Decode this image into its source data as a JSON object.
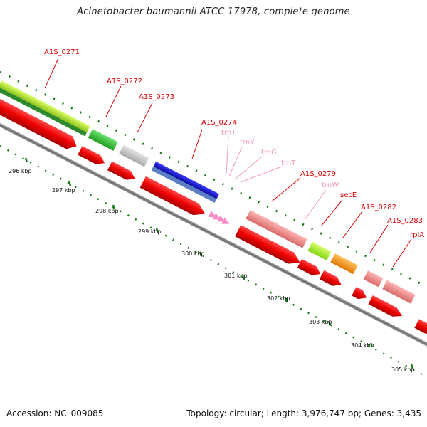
{
  "title": "Acinetobacter baumannii ATCC 17978, complete genome",
  "footer": {
    "accession": "Accession: NC_009085",
    "stats": "Topology: circular; Length: 3,976,747 bp; Genes: 3,435"
  },
  "colors": {
    "backbone": "#6e6e6e",
    "tick": "#1a7a1a",
    "label_red": "#dd0000",
    "label_pink": "#f09ac0",
    "cds": "#ee0000",
    "trna": "#f58cc8"
  },
  "kbp_labels": [
    "296 kbp",
    "297 kbp",
    "298 kbp",
    "299 kbp",
    "300 kbp",
    "301 kbp",
    "302 kbp",
    "303 kbp",
    "304 kbp",
    "305 kbp"
  ],
  "gene_labels": [
    {
      "text": "A1S_0271",
      "type": "cds"
    },
    {
      "text": "A1S_0272",
      "type": "cds"
    },
    {
      "text": "A1S_0273",
      "type": "cds"
    },
    {
      "text": "A1S_0274",
      "type": "cds"
    },
    {
      "text": "trnT",
      "type": "trna"
    },
    {
      "text": "trnY",
      "type": "trna"
    },
    {
      "text": "trnG",
      "type": "trna"
    },
    {
      "text": "trnT",
      "type": "trna"
    },
    {
      "text": "A1S_0279",
      "type": "cds"
    },
    {
      "text": "trnW",
      "type": "trna"
    },
    {
      "text": "secE",
      "type": "cds"
    },
    {
      "text": "A1S_0282",
      "type": "cds"
    },
    {
      "text": "A1S_0283",
      "type": "cds"
    },
    {
      "text": "rplA",
      "type": "cds"
    }
  ],
  "features": [
    {
      "name": "A1S_0271",
      "track": "upper",
      "color": "#b7e43a"
    },
    {
      "name": "A1S_0272",
      "track": "upper",
      "color": "#3cc23c"
    },
    {
      "name": "A1S_0273",
      "track": "upper",
      "color": "#c8c8c8"
    },
    {
      "name": "A1S_0274",
      "track": "upper",
      "color": "#1a1acc"
    },
    {
      "name": "A1S_0279",
      "track": "upper",
      "color": "#f08a8a"
    },
    {
      "name": "secE",
      "track": "upper",
      "color": "#a6ee28"
    },
    {
      "name": "A1S_0282",
      "track": "upper",
      "color": "#ff9410"
    },
    {
      "name": "A1S_0283",
      "track": "upper",
      "color": "#f08a8a"
    },
    {
      "name": "rplA",
      "track": "upper",
      "color": "#f08a8a"
    }
  ]
}
